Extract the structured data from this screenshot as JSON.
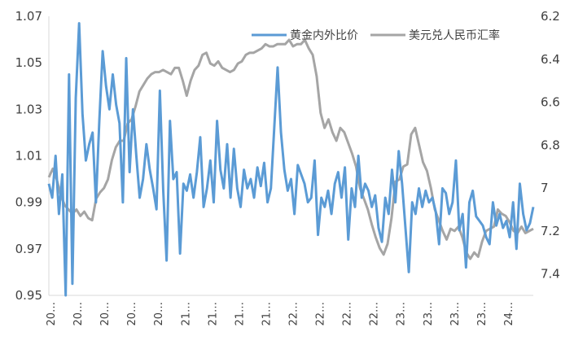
{
  "chart_data": {
    "type": "line",
    "title": "",
    "xlabel": "",
    "ylabel": "",
    "legend_position": "top-right",
    "grid": false,
    "x_tick_labels": [
      "20…",
      "20…",
      "20…",
      "20…",
      "20…",
      "21…",
      "21…",
      "21…",
      "21…",
      "22…",
      "22…",
      "22…",
      "22…",
      "23…",
      "23…",
      "23…",
      "23…",
      "24…"
    ],
    "y_left": {
      "range": [
        0.95,
        1.07
      ],
      "ticks": [
        "0.95",
        "0.97",
        "0.99",
        "1.01",
        "1.03",
        "1.05",
        "1.07"
      ]
    },
    "y_right": {
      "range": [
        6.2,
        7.5
      ],
      "inverted": true,
      "ticks": [
        "6.2",
        "6.4",
        "6.6",
        "6.8",
        "7",
        "7.2",
        "7.4"
      ]
    },
    "series": [
      {
        "name": "黄金内外比价",
        "axis": "left",
        "color": "#5b9bd5",
        "values": [
          0.998,
          0.992,
          1.01,
          0.985,
          1.002,
          0.95,
          1.045,
          0.955,
          1.035,
          1.067,
          1.028,
          1.008,
          1.015,
          1.02,
          0.99,
          1.025,
          1.055,
          1.04,
          1.03,
          1.045,
          1.032,
          1.024,
          0.99,
          1.052,
          1.003,
          1.03,
          1.01,
          0.992,
          1.0,
          1.015,
          1.004,
          0.996,
          0.987,
          1.038,
          0.995,
          0.965,
          1.025,
          1.0,
          1.003,
          0.968,
          0.998,
          0.995,
          1.002,
          0.992,
          1.003,
          1.018,
          0.988,
          0.996,
          1.008,
          0.99,
          1.025,
          1.004,
          0.996,
          1.015,
          0.992,
          1.013,
          0.996,
          0.988,
          1.004,
          0.996,
          1.0,
          0.992,
          1.005,
          0.997,
          1.007,
          0.99,
          0.996,
          1.022,
          1.048,
          1.02,
          1.004,
          0.995,
          1.0,
          0.985,
          1.006,
          1.002,
          0.998,
          0.99,
          0.992,
          1.008,
          0.976,
          0.992,
          0.988,
          0.995,
          0.985,
          0.998,
          1.003,
          0.992,
          1.005,
          0.974,
          0.996,
          0.988,
          1.01,
          0.992,
          0.998,
          0.995,
          0.988,
          0.993,
          0.979,
          0.973,
          0.992,
          0.985,
          1.004,
          0.99,
          1.012,
          0.998,
          0.979,
          0.96,
          0.99,
          0.985,
          0.996,
          0.988,
          0.995,
          0.99,
          0.992,
          0.986,
          0.972,
          0.996,
          0.994,
          0.985,
          0.99,
          1.008,
          0.978,
          0.985,
          0.962,
          0.99,
          0.995,
          0.984,
          0.982,
          0.98,
          0.975,
          0.972,
          0.99,
          0.98,
          0.985,
          0.979,
          0.982,
          0.975,
          0.99,
          0.97,
          0.998,
          0.985,
          0.978,
          0.981,
          0.988
        ]
      },
      {
        "name": "美元兑人民币汇率",
        "axis": "right",
        "color": "#a5a5a5",
        "values": [
          6.95,
          6.91,
          6.96,
          7.03,
          7.08,
          7.1,
          7.12,
          7.1,
          7.13,
          7.11,
          7.14,
          7.15,
          7.05,
          7.02,
          7.0,
          6.96,
          6.87,
          6.81,
          6.78,
          6.78,
          6.7,
          6.68,
          6.62,
          6.55,
          6.52,
          6.49,
          6.47,
          6.46,
          6.46,
          6.45,
          6.46,
          6.47,
          6.44,
          6.44,
          6.5,
          6.57,
          6.5,
          6.45,
          6.43,
          6.38,
          6.37,
          6.42,
          6.43,
          6.41,
          6.44,
          6.45,
          6.46,
          6.45,
          6.42,
          6.41,
          6.38,
          6.37,
          6.37,
          6.36,
          6.35,
          6.33,
          6.34,
          6.34,
          6.33,
          6.33,
          6.33,
          6.31,
          6.34,
          6.33,
          6.33,
          6.31,
          6.35,
          6.38,
          6.48,
          6.65,
          6.72,
          6.68,
          6.74,
          6.78,
          6.72,
          6.74,
          6.79,
          6.84,
          6.9,
          7.0,
          7.05,
          7.1,
          7.17,
          7.23,
          7.28,
          7.31,
          7.26,
          7.14,
          6.97,
          6.96,
          6.9,
          6.89,
          6.75,
          6.72,
          6.8,
          6.88,
          6.92,
          7.0,
          7.1,
          7.15,
          7.2,
          7.24,
          7.19,
          7.2,
          7.18,
          7.23,
          7.3,
          7.33,
          7.3,
          7.32,
          7.25,
          7.2,
          7.19,
          7.18,
          7.1,
          7.12,
          7.13,
          7.16,
          7.2,
          7.21,
          7.18,
          7.21,
          7.2,
          7.19
        ]
      }
    ]
  }
}
